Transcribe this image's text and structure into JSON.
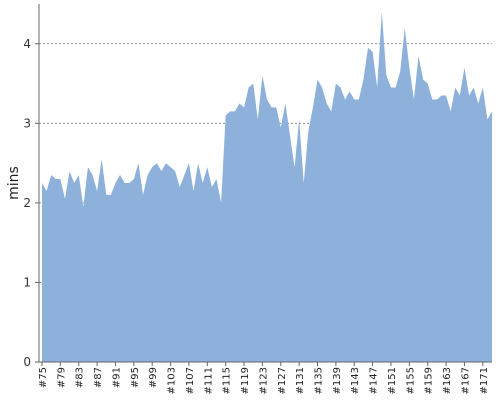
{
  "chart_data": {
    "type": "area",
    "title": "",
    "xlabel": "",
    "ylabel": "mins",
    "ylim": [
      0,
      4.5
    ],
    "yticks": [
      0,
      1,
      2,
      3,
      4
    ],
    "grid": "horizontal dashed",
    "legend": "none",
    "color": "#8eb1dc",
    "x": [
      "#75",
      "#76",
      "#77",
      "#78",
      "#79",
      "#80",
      "#81",
      "#82",
      "#83",
      "#84",
      "#85",
      "#86",
      "#87",
      "#88",
      "#89",
      "#90",
      "#91",
      "#92",
      "#93",
      "#94",
      "#95",
      "#96",
      "#97",
      "#98",
      "#99",
      "#100",
      "#101",
      "#102",
      "#103",
      "#104",
      "#105",
      "#106",
      "#107",
      "#108",
      "#109",
      "#110",
      "#111",
      "#112",
      "#113",
      "#114",
      "#115",
      "#116",
      "#117",
      "#118",
      "#119",
      "#120",
      "#121",
      "#122",
      "#123",
      "#124",
      "#125",
      "#126",
      "#127",
      "#128",
      "#129",
      "#130",
      "#131",
      "#132",
      "#133",
      "#134",
      "#135",
      "#136",
      "#137",
      "#138",
      "#139",
      "#140",
      "#141",
      "#142",
      "#143",
      "#144",
      "#145",
      "#146",
      "#147",
      "#148",
      "#149",
      "#150",
      "#151",
      "#152",
      "#153",
      "#154",
      "#155",
      "#156",
      "#157",
      "#158",
      "#159",
      "#160",
      "#161",
      "#162",
      "#163",
      "#164",
      "#165",
      "#166",
      "#167",
      "#168",
      "#169",
      "#170",
      "#171",
      "#172",
      "#173"
    ],
    "x_tick_labels": [
      "#75",
      "#79",
      "#83",
      "#87",
      "#91",
      "#95",
      "#99",
      "#103",
      "#107",
      "#111",
      "#115",
      "#119",
      "#123",
      "#127",
      "#131",
      "#135",
      "#139",
      "#143",
      "#147",
      "#151",
      "#155",
      "#159",
      "#163",
      "#167",
      "#171"
    ],
    "values": [
      2.25,
      2.15,
      2.35,
      2.3,
      2.3,
      2.05,
      2.4,
      2.25,
      2.35,
      1.95,
      2.45,
      2.35,
      2.15,
      2.55,
      2.1,
      2.1,
      2.25,
      2.35,
      2.25,
      2.25,
      2.3,
      2.5,
      2.1,
      2.35,
      2.45,
      2.5,
      2.4,
      2.5,
      2.45,
      2.4,
      2.2,
      2.35,
      2.5,
      2.15,
      2.5,
      2.25,
      2.45,
      2.2,
      2.3,
      2.0,
      3.1,
      3.15,
      3.15,
      3.25,
      3.2,
      3.45,
      3.5,
      3.05,
      3.6,
      3.3,
      3.2,
      3.2,
      2.95,
      3.25,
      2.85,
      2.45,
      3.05,
      2.25,
      2.9,
      3.2,
      3.55,
      3.45,
      3.25,
      3.15,
      3.5,
      3.45,
      3.3,
      3.4,
      3.3,
      3.3,
      3.55,
      3.95,
      3.9,
      3.45,
      4.4,
      3.6,
      3.45,
      3.45,
      3.65,
      4.2,
      3.7,
      3.3,
      3.85,
      3.55,
      3.5,
      3.3,
      3.3,
      3.35,
      3.35,
      3.15,
      3.45,
      3.35,
      3.7,
      3.35,
      3.45,
      3.25,
      3.45,
      3.05,
      3.15
    ]
  }
}
